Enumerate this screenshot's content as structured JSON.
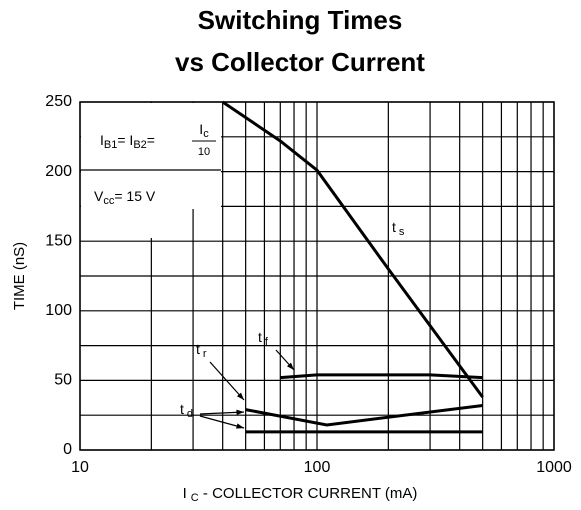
{
  "chart_data": {
    "type": "line",
    "title": [
      "Switching Times",
      "vs Collector Current"
    ],
    "y_label": "TIME  (nS)",
    "x_label": {
      "main": "I",
      "sub": "C",
      "rest": " - COLLECTOR CURRENT (mA)"
    },
    "x_log": true,
    "xlim": [
      10,
      1000
    ],
    "xticks": [
      10,
      100,
      1000
    ],
    "x_minor_grid": [
      20,
      30,
      40,
      50,
      60,
      70,
      80,
      90,
      200,
      300,
      400,
      500,
      600,
      700,
      800,
      900
    ],
    "ylim": [
      0,
      250
    ],
    "yticks": [
      0,
      50,
      100,
      150,
      200,
      250
    ],
    "y_minor_grid": [
      25,
      75,
      125,
      175,
      225
    ],
    "grid": true,
    "series": [
      {
        "label": "t",
        "label_sub": "s",
        "color": "#000000",
        "x": [
          40,
          70,
          100,
          200,
          500
        ],
        "values": [
          250,
          222,
          201,
          130,
          38
        ]
      },
      {
        "label": "t",
        "label_sub": "f",
        "color": "#000000",
        "x": [
          70,
          100,
          300,
          500
        ],
        "values": [
          52,
          54,
          54,
          52
        ]
      },
      {
        "label": "t",
        "label_sub": "r",
        "color": "#000000",
        "x": [
          50,
          110,
          500
        ],
        "values": [
          29,
          18,
          32
        ]
      },
      {
        "label": "t",
        "label_sub": "d",
        "color": "#000000",
        "x": [
          50,
          500
        ],
        "values": [
          13,
          13
        ]
      }
    ],
    "conditions": [
      [
        {
          "text": "I"
        },
        {
          "text": "B1",
          "sub": true
        },
        {
          "text": "= I"
        },
        {
          "text": "B2",
          "sub": true
        },
        {
          "text": "="
        }
      ],
      [
        {
          "text": "V"
        },
        {
          "text": "cc",
          "sub": true
        },
        {
          "text": "= 15 V"
        }
      ]
    ],
    "fraction": {
      "num": "I",
      "num_sub": "c",
      "den": "10"
    }
  }
}
